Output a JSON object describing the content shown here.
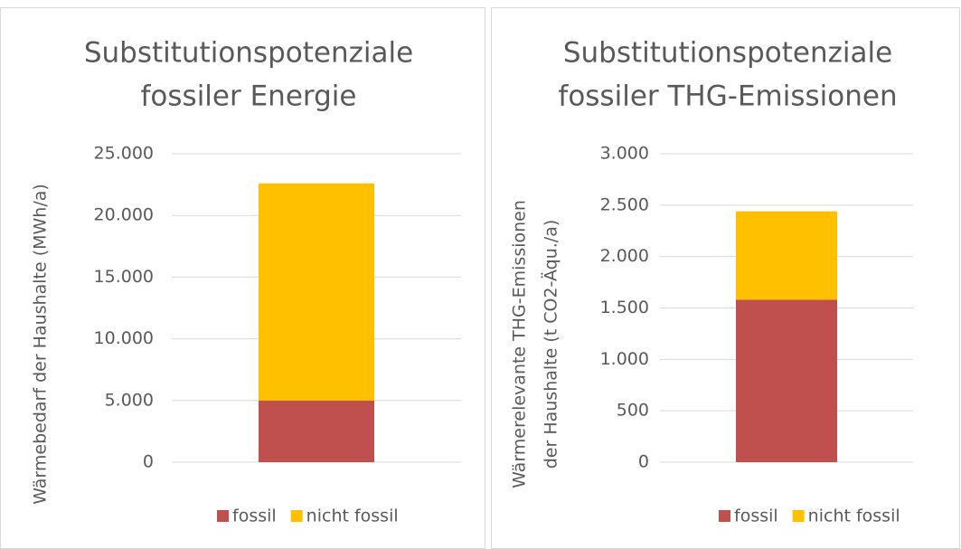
{
  "chart_data": [
    {
      "type": "bar",
      "stacked": true,
      "title": [
        "Substitutionspotenziale",
        "fossiler Energie"
      ],
      "ylabel": [
        "Wärmebedarf der Haushalte (MWh/a)"
      ],
      "categories": [
        null
      ],
      "series": [
        {
          "name": "fossil",
          "color": "#c0504d",
          "values": [
            5000
          ]
        },
        {
          "name": "nicht fossil",
          "color": "#ffc000",
          "values": [
            17600
          ]
        }
      ],
      "ylim": [
        0,
        25000
      ],
      "yticks": [
        0,
        {
          "value": 5000,
          "label": "5.000"
        },
        {
          "value": 10000,
          "label": "10.000"
        },
        {
          "value": 15000,
          "label": "15.000"
        },
        {
          "value": 20000,
          "label": "20.000"
        },
        {
          "value": 25000,
          "label": "25.000"
        }
      ],
      "grid": true,
      "legend": "bottom"
    },
    {
      "type": "bar",
      "stacked": true,
      "title": [
        "Substitutionspotenziale",
        "fossiler THG-Emissionen"
      ],
      "ylabel": [
        "Wärmerelevante THG-Emissionen",
        "der Haushalte (t CO2-Äqu./a)"
      ],
      "categories": [
        null
      ],
      "series": [
        {
          "name": "fossil",
          "color": "#c0504d",
          "values": [
            1580
          ]
        },
        {
          "name": "nicht fossil",
          "color": "#ffc000",
          "values": [
            860
          ]
        }
      ],
      "ylim": [
        0,
        3000
      ],
      "yticks": [
        0,
        500,
        {
          "value": 1000,
          "label": "1.000"
        },
        {
          "value": 1500,
          "label": "1.500"
        },
        {
          "value": 2000,
          "label": "2.000"
        },
        {
          "value": 2500,
          "label": "2.500"
        },
        {
          "value": 3000,
          "label": "3.000"
        }
      ],
      "grid": true,
      "legend": "bottom"
    }
  ]
}
